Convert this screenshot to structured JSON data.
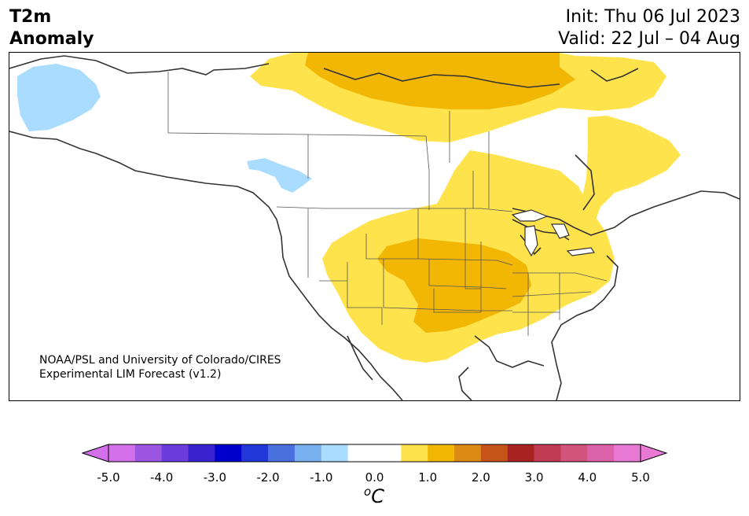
{
  "header": {
    "title_line1": "T2m",
    "title_line2": "Anomaly",
    "init": "Init: Thu 06 Jul 2023",
    "valid": "Valid: 22 Jul – 04 Aug"
  },
  "map": {
    "credit_line1": "NOAA/PSL and University of Colorado/CIRES",
    "credit_line2": "Experimental LIM Forecast (v1.2)",
    "colors": {
      "land_line": "#333333",
      "cool_light": "#aadcff",
      "warm_1": "#ffe34d",
      "warm_2": "#f2b705"
    }
  },
  "colorbar": {
    "unit_symbol": "o",
    "unit_letter": "C",
    "ticks": [
      "-5.0",
      "-4.0",
      "-3.0",
      "-2.0",
      "-1.0",
      "0.0",
      "1.0",
      "2.0",
      "3.0",
      "4.0",
      "5.0"
    ],
    "tick_values": [
      -5,
      -4,
      -3,
      -2,
      -1,
      0,
      1,
      2,
      3,
      4,
      5
    ],
    "colors": [
      "#d36fe8",
      "#9b55e0",
      "#6a3ddc",
      "#3a22d0",
      "#0000cc",
      "#2338d8",
      "#4a70e0",
      "#78b0f0",
      "#aadcff",
      "#ffffff",
      "#ffffff",
      "#ffe34d",
      "#f2b705",
      "#dc8a12",
      "#c65418",
      "#aa2323",
      "#c23b55",
      "#d2557d",
      "#dc62aa",
      "#e87ad6"
    ],
    "under_color": "#d36fe8",
    "over_color": "#e87ad6"
  }
}
